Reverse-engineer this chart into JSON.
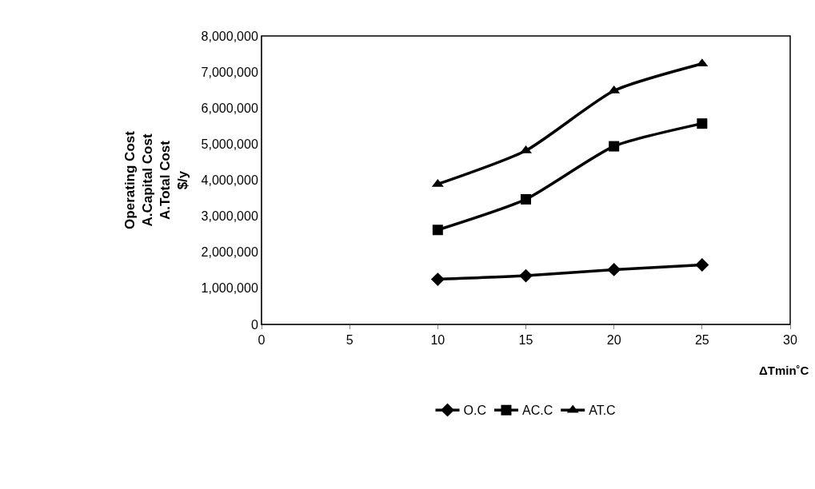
{
  "chart_data": {
    "type": "line",
    "x": [
      10,
      15,
      20,
      25
    ],
    "series": [
      {
        "name": "O.C",
        "color": "#000000",
        "marker": "diamond",
        "values": [
          1250000,
          1350000,
          1520000,
          1650000
        ]
      },
      {
        "name": "AC.C",
        "color": "#000000",
        "marker": "square",
        "values": [
          2620000,
          3470000,
          4940000,
          5570000
        ]
      },
      {
        "name": "AT.C",
        "color": "#000000",
        "marker": "triangle",
        "values": [
          3890000,
          4820000,
          6480000,
          7230000
        ]
      }
    ],
    "xlabel": "ΔTmin˚C",
    "ylabel": "Operating Cost\nA.Capital Cost\nA.Total Cost\n$/y",
    "xlim": [
      0,
      30
    ],
    "xticks": [
      0,
      5,
      10,
      15,
      20,
      25,
      30
    ],
    "ylim": [
      0,
      8000000
    ],
    "yticks": [
      {
        "value": 0,
        "label": "0"
      },
      {
        "value": 1000000,
        "label": "1,000,000"
      },
      {
        "value": 2000000,
        "label": "2,000,000"
      },
      {
        "value": 3000000,
        "label": "3,000,000"
      },
      {
        "value": 4000000,
        "label": "4,000,000"
      },
      {
        "value": 5000000,
        "label": "5,000,000"
      },
      {
        "value": 6000000,
        "label": "6,000,000"
      },
      {
        "value": 7000000,
        "label": "7,000,000"
      },
      {
        "value": 8000000,
        "label": "8,000,000"
      }
    ],
    "grid": false,
    "legend": "bottom",
    "line_style": "solid"
  }
}
